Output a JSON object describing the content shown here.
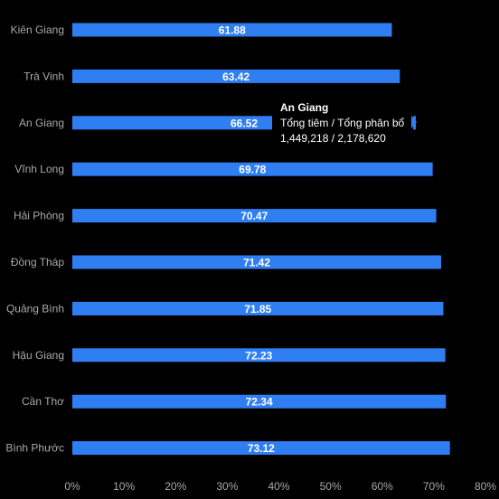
{
  "chart_data": {
    "type": "bar",
    "orientation": "horizontal",
    "categories": [
      "Kiên Giang",
      "Trà Vinh",
      "An Giang",
      "Vĩnh Long",
      "Hải Phòng",
      "Đồng Tháp",
      "Quảng Bình",
      "Hậu Giang",
      "Cần Thơ",
      "Bình Phước"
    ],
    "values": [
      61.88,
      63.42,
      66.52,
      69.78,
      70.47,
      71.42,
      71.85,
      72.23,
      72.34,
      73.12
    ],
    "value_labels": [
      "61.88",
      "63.42",
      "66.52",
      "69.78",
      "70.47",
      "71.42",
      "71.85",
      "72.23",
      "72.34",
      "73.12"
    ],
    "xlim": [
      0,
      80
    ],
    "x_ticks": [
      "0%",
      "10%",
      "20%",
      "30%",
      "40%",
      "50%",
      "60%",
      "70%",
      "80%"
    ],
    "grid": false,
    "legend": "none",
    "bar_color": "#2f7ff2",
    "label_color": "#ffffff",
    "tick_color": "#a9a9a9",
    "background": "#000000",
    "tooltip": {
      "title": "An Giang",
      "label": "Tổng tiêm / Tổng phân bổ",
      "value": "1,449,218 / 2,178,620"
    }
  }
}
